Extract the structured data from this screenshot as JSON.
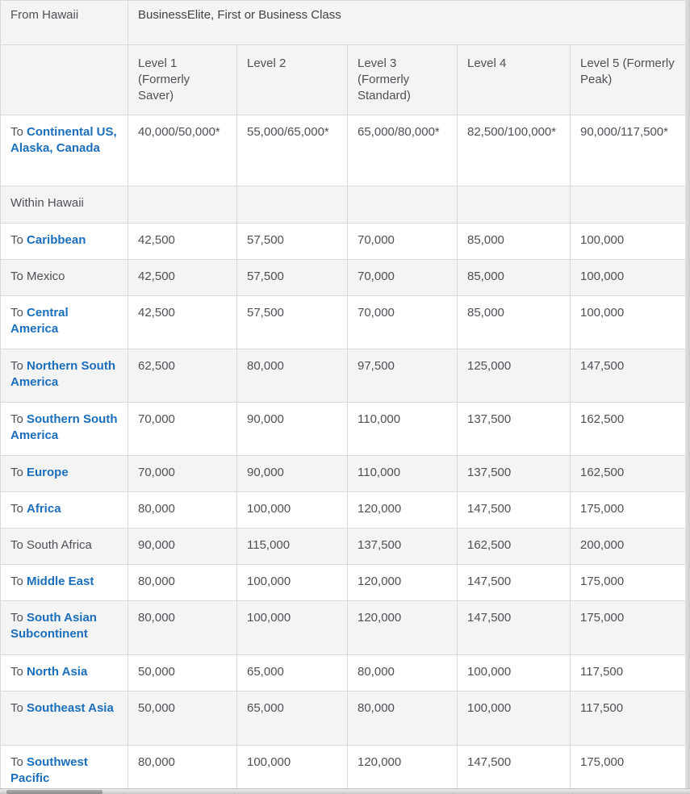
{
  "table": {
    "header": {
      "from_label": "From Hawaii",
      "class_label": "BusinessElite, First or Business Class",
      "levels": [
        "Level 1 (Formerly Saver)",
        "Level 2",
        "Level 3 (Formerly Standard)",
        "Level 4",
        "Level 5 (Formerly Peak)"
      ]
    },
    "rows": [
      {
        "prefix": "To ",
        "destination": "Continental US, Alaska, Canada",
        "is_link": true,
        "values": [
          "40,000/50,000*",
          "55,000/65,000*",
          "65,000/80,000*",
          "82,500/100,000*",
          "90,000/117,500*"
        ]
      },
      {
        "prefix": "",
        "destination": "Within Hawaii",
        "is_link": false,
        "values": [
          "",
          "",
          "",
          "",
          ""
        ]
      },
      {
        "prefix": "To ",
        "destination": "Caribbean",
        "is_link": true,
        "values": [
          "42,500",
          "57,500",
          "70,000",
          "85,000",
          "100,000"
        ]
      },
      {
        "prefix": "To ",
        "destination": "Mexico",
        "is_link": false,
        "values": [
          "42,500",
          "57,500",
          "70,000",
          "85,000",
          "100,000"
        ]
      },
      {
        "prefix": "To ",
        "destination": "Central America",
        "is_link": true,
        "values": [
          "42,500",
          "57,500",
          "70,000",
          "85,000",
          "100,000"
        ]
      },
      {
        "prefix": "To ",
        "destination": "Northern South America",
        "is_link": true,
        "values": [
          "62,500",
          "80,000",
          "97,500",
          "125,000",
          "147,500"
        ]
      },
      {
        "prefix": "To ",
        "destination": "Southern South America",
        "is_link": true,
        "values": [
          "70,000",
          "90,000",
          "110,000",
          "137,500",
          "162,500"
        ]
      },
      {
        "prefix": "To ",
        "destination": "Europe",
        "is_link": true,
        "values": [
          "70,000",
          "90,000",
          "110,000",
          "137,500",
          "162,500"
        ]
      },
      {
        "prefix": "To ",
        "destination": "Africa",
        "is_link": true,
        "values": [
          "80,000",
          "100,000",
          "120,000",
          "147,500",
          "175,000"
        ]
      },
      {
        "prefix": "To ",
        "destination": "South Africa",
        "is_link": false,
        "values": [
          "90,000",
          "115,000",
          "137,500",
          "162,500",
          "200,000"
        ]
      },
      {
        "prefix": "To ",
        "destination": "Middle East",
        "is_link": true,
        "values": [
          "80,000",
          "100,000",
          "120,000",
          "147,500",
          "175,000"
        ]
      },
      {
        "prefix": "To ",
        "destination": "South Asian Subcontinent",
        "is_link": true,
        "values": [
          "80,000",
          "100,000",
          "120,000",
          "147,500",
          "175,000"
        ]
      },
      {
        "prefix": "To ",
        "destination": "North Asia",
        "is_link": true,
        "values": [
          "50,000",
          "65,000",
          "80,000",
          "100,000",
          "117,500"
        ]
      },
      {
        "prefix": "To ",
        "destination": "Southeast Asia",
        "is_link": true,
        "values": [
          "50,000",
          "65,000",
          "80,000",
          "100,000",
          "117,500"
        ]
      },
      {
        "prefix": "To ",
        "destination": "Southwest Pacific",
        "is_link": true,
        "values": [
          "80,000",
          "100,000",
          "120,000",
          "147,500",
          "175,000"
        ]
      }
    ]
  },
  "colors": {
    "link_blue": "#1b6ebb",
    "header_bg": "#f4f4f4",
    "alt_row_bg": "#f4f4f4",
    "border": "#d9d9d9",
    "text": "#4d5156"
  }
}
